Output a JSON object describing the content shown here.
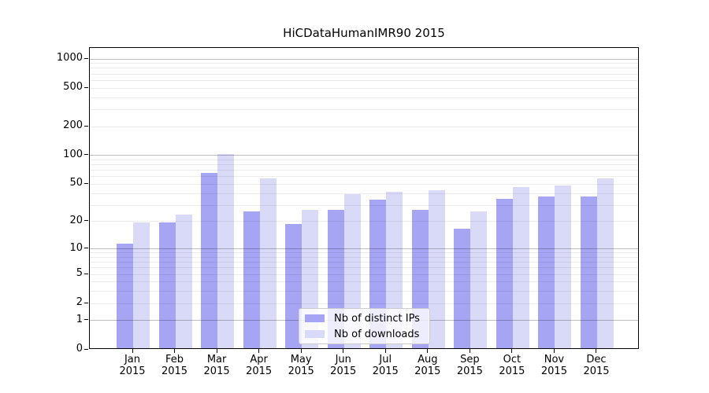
{
  "chart_data": {
    "type": "bar",
    "title": "HiCDataHumanIMR90 2015",
    "categories": [
      "Jan",
      "Feb",
      "Mar",
      "Apr",
      "May",
      "Jun",
      "Jul",
      "Aug",
      "Sep",
      "Oct",
      "Nov",
      "Dec"
    ],
    "xlabel_year": "2015",
    "series": [
      {
        "name": "Nb of distinct IPs",
        "color": "#a5a5f4",
        "values": [
          11,
          19,
          63,
          25,
          18,
          26,
          33,
          26,
          16,
          34,
          36,
          36
        ]
      },
      {
        "name": "Nb of downloads",
        "color": "#d9d9f8",
        "values": [
          19,
          23,
          100,
          56,
          26,
          38,
          40,
          42,
          25,
          45,
          47,
          55
        ]
      }
    ],
    "yticks": [
      0,
      1,
      2,
      5,
      10,
      20,
      50,
      100,
      200,
      500,
      1000
    ],
    "major_grid": [
      1,
      10,
      100,
      1000
    ],
    "scale": "log10(1+x)",
    "ylim": [
      0,
      1300
    ],
    "grid": true,
    "xlabel": "",
    "ylabel": "",
    "legend_position": "bottom-center"
  }
}
